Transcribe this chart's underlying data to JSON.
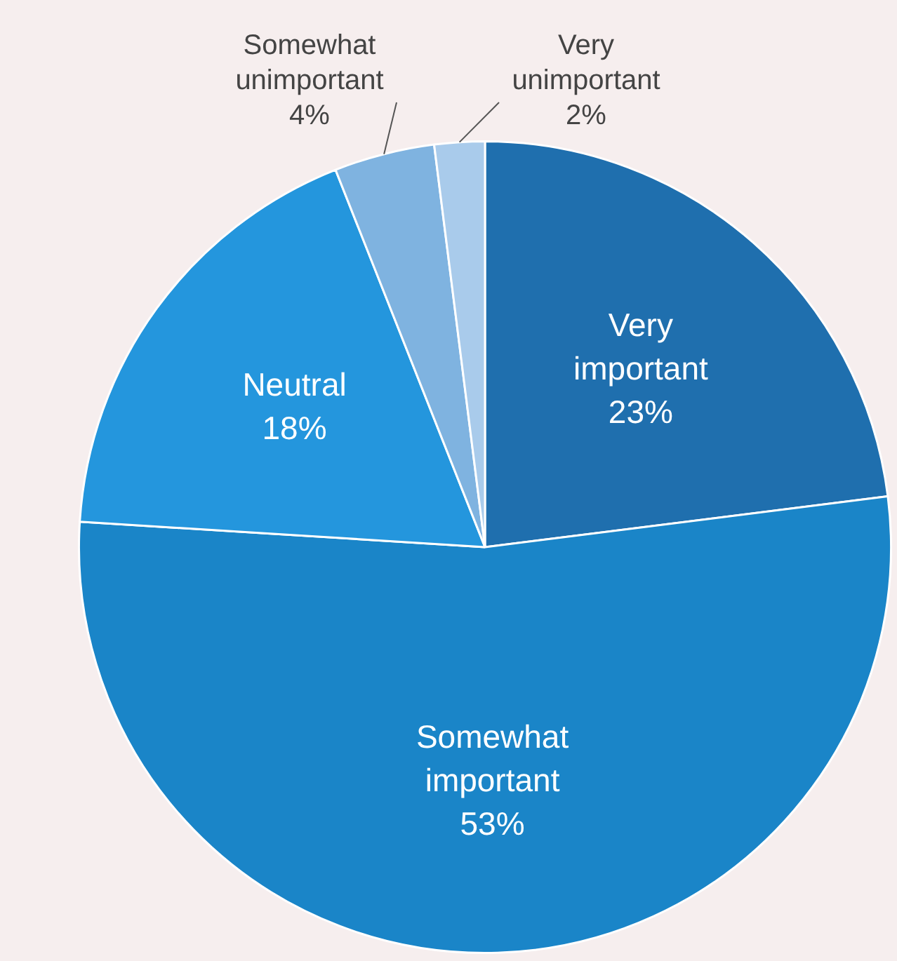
{
  "chart_data": {
    "type": "pie",
    "categories": [
      "Very important",
      "Somewhat important",
      "Neutral",
      "Somewhat unimportant",
      "Very unimportant"
    ],
    "values": [
      23,
      53,
      18,
      4,
      2
    ],
    "value_labels": [
      "23%",
      "53%",
      "18%",
      "4%",
      "2%"
    ],
    "colors": [
      "#1f6fae",
      "#1a85c8",
      "#2496dd",
      "#7fb3e0",
      "#a9cbeb"
    ],
    "legend": false
  }
}
